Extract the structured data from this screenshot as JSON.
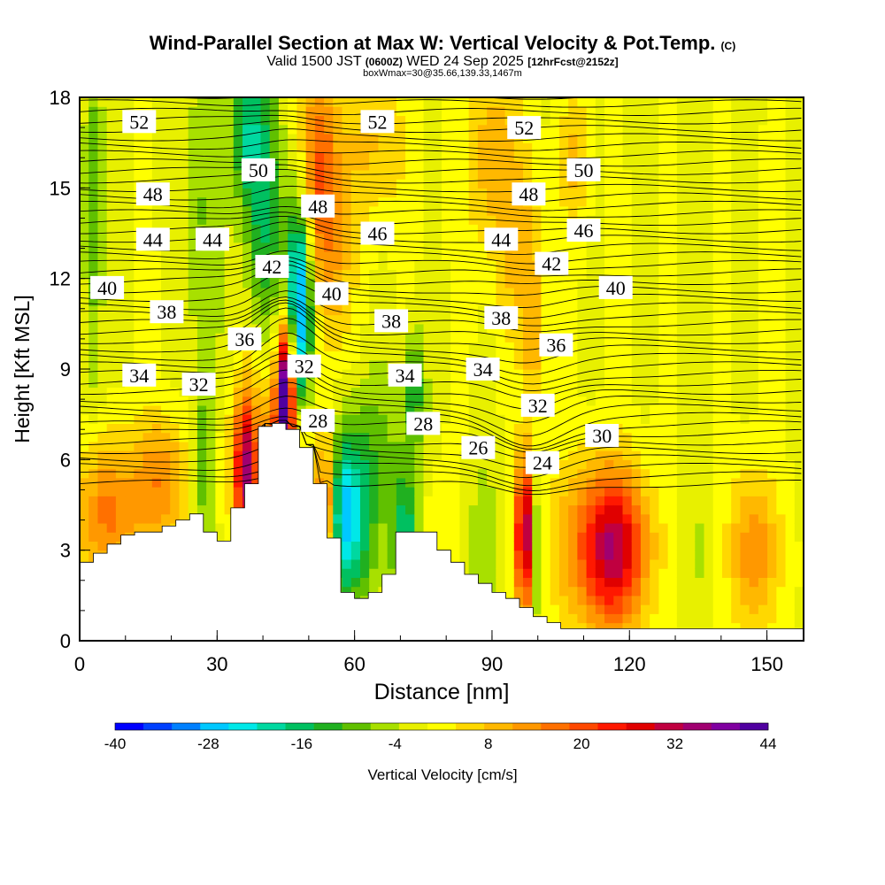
{
  "title": {
    "main": "Wind-Parallel Section at Max W: Vertical Velocity & Pot.Temp.",
    "main_tag": "(C)",
    "valid_prefix": "Valid 1500 JST",
    "valid_z": "(0600Z)",
    "valid_date": "WED 24 Sep 2025",
    "valid_fcst": "[12hrFcst@2152z]",
    "box_line": "boxWmax=30@35.66,139.33,1467m"
  },
  "chart_data": {
    "type": "heatmap",
    "xlabel": "Distance [nm]",
    "ylabel": "Height [Kft MSL]",
    "xlim": [
      0,
      158
    ],
    "ylim": [
      0,
      18
    ],
    "x_ticks": [
      0,
      30,
      60,
      90,
      120,
      150
    ],
    "y_ticks": [
      0,
      3,
      6,
      9,
      12,
      15,
      18
    ],
    "colorbar": {
      "label": "Vertical Velocity [cm/s]",
      "tick_labels": [
        "-40",
        "-28",
        "-16",
        "-4",
        "8",
        "20",
        "32",
        "44"
      ],
      "tick_values": [
        -40,
        -28,
        -16,
        -4,
        8,
        20,
        32,
        44
      ],
      "colors": [
        "#0000ff",
        "#0040ff",
        "#0080ff",
        "#00c8ff",
        "#00e8e8",
        "#00d8a0",
        "#00c060",
        "#20b020",
        "#60c000",
        "#a8e000",
        "#e8f000",
        "#ffff00",
        "#ffd800",
        "#ffb800",
        "#ff9800",
        "#ff7000",
        "#ff4800",
        "#ff1800",
        "#e00000",
        "#c00040",
        "#a00070",
        "#8000a0",
        "#5000a0"
      ]
    },
    "theta_labels": [
      {
        "v": "52",
        "x": 13,
        "y": 17.2
      },
      {
        "v": "52",
        "x": 65,
        "y": 17.2
      },
      {
        "v": "52",
        "x": 97,
        "y": 17.0
      },
      {
        "v": "50",
        "x": 39,
        "y": 15.6
      },
      {
        "v": "50",
        "x": 110,
        "y": 15.6
      },
      {
        "v": "48",
        "x": 16,
        "y": 14.8
      },
      {
        "v": "48",
        "x": 52,
        "y": 14.4
      },
      {
        "v": "48",
        "x": 98,
        "y": 14.8
      },
      {
        "v": "46",
        "x": 65,
        "y": 13.5
      },
      {
        "v": "46",
        "x": 110,
        "y": 13.6
      },
      {
        "v": "44",
        "x": 16,
        "y": 13.3
      },
      {
        "v": "44",
        "x": 29,
        "y": 13.3
      },
      {
        "v": "44",
        "x": 92,
        "y": 13.3
      },
      {
        "v": "42",
        "x": 42,
        "y": 12.4
      },
      {
        "v": "42",
        "x": 103,
        "y": 12.5
      },
      {
        "v": "40",
        "x": 6,
        "y": 11.7
      },
      {
        "v": "40",
        "x": 55,
        "y": 11.5
      },
      {
        "v": "40",
        "x": 117,
        "y": 11.7
      },
      {
        "v": "38",
        "x": 19,
        "y": 10.9
      },
      {
        "v": "38",
        "x": 68,
        "y": 10.6
      },
      {
        "v": "38",
        "x": 92,
        "y": 10.7
      },
      {
        "v": "36",
        "x": 36,
        "y": 10.0
      },
      {
        "v": "36",
        "x": 104,
        "y": 9.8
      },
      {
        "v": "34",
        "x": 13,
        "y": 8.8
      },
      {
        "v": "34",
        "x": 71,
        "y": 8.8
      },
      {
        "v": "34",
        "x": 88,
        "y": 9.0
      },
      {
        "v": "32",
        "x": 26,
        "y": 8.5
      },
      {
        "v": "32",
        "x": 49,
        "y": 9.1
      },
      {
        "v": "32",
        "x": 100,
        "y": 7.8
      },
      {
        "v": "30",
        "x": 114,
        "y": 6.8
      },
      {
        "v": "28",
        "x": 52,
        "y": 7.3
      },
      {
        "v": "28",
        "x": 75,
        "y": 7.2
      },
      {
        "v": "26",
        "x": 87,
        "y": 6.4
      },
      {
        "v": "24",
        "x": 101,
        "y": 5.9
      }
    ],
    "terrain_x": [
      0,
      3,
      6,
      9,
      12,
      15,
      18,
      21,
      24,
      27,
      30,
      33,
      36,
      39,
      42,
      45,
      48,
      51,
      54,
      57,
      60,
      63,
      66,
      69,
      72,
      75,
      78,
      81,
      84,
      87,
      90,
      93,
      96,
      99,
      102,
      105,
      108,
      111,
      114,
      117,
      120,
      123,
      126,
      129,
      132,
      135,
      138,
      141,
      144,
      147,
      150,
      153,
      156,
      158
    ],
    "terrain_h": [
      2.6,
      2.9,
      3.2,
      3.5,
      3.6,
      3.6,
      3.8,
      4.0,
      4.2,
      3.6,
      3.3,
      4.4,
      5.2,
      7.1,
      7.2,
      7.0,
      6.4,
      5.2,
      3.4,
      1.6,
      1.4,
      1.6,
      2.2,
      3.6,
      3.6,
      3.6,
      3.0,
      2.6,
      2.2,
      1.9,
      1.6,
      1.4,
      1.1,
      0.8,
      0.6,
      0.4,
      0.4,
      0.4,
      0.4,
      0.4,
      0.4,
      0.4,
      0.4,
      0.4,
      0.4,
      0.4,
      0.4,
      0.4,
      0.4,
      0.4,
      0.4,
      0.4,
      0.4,
      0.4
    ],
    "w_features": [
      {
        "x": 45,
        "y": 8.4,
        "sx": 1.4,
        "sy": 1.6,
        "w": 44
      },
      {
        "x": 48,
        "y": 11.0,
        "sx": 2.0,
        "sy": 2.8,
        "w": -34
      },
      {
        "x": 40,
        "y": 14.6,
        "sx": 2.8,
        "sy": 3.2,
        "w": -16
      },
      {
        "x": 36,
        "y": 16.8,
        "sx": 2.4,
        "sy": 1.6,
        "w": -14
      },
      {
        "x": 52,
        "y": 15.8,
        "sx": 3.2,
        "sy": 2.4,
        "w": 18
      },
      {
        "x": 55,
        "y": 12.2,
        "sx": 3.0,
        "sy": 2.2,
        "w": 10
      },
      {
        "x": 57,
        "y": 4.2,
        "sx": 2.4,
        "sy": 1.8,
        "w": -22
      },
      {
        "x": 61,
        "y": 4.0,
        "sx": 3.0,
        "sy": 2.2,
        "w": -14
      },
      {
        "x": 54,
        "y": 4.5,
        "sx": 1.5,
        "sy": 1.6,
        "w": 24
      },
      {
        "x": 71,
        "y": 3.3,
        "sx": 2.0,
        "sy": 1.6,
        "w": -18
      },
      {
        "x": 66,
        "y": 6.5,
        "sx": 6.0,
        "sy": 2.0,
        "w": -6
      },
      {
        "x": 42,
        "y": 6.0,
        "sx": 6.0,
        "sy": 2.0,
        "w": 18
      },
      {
        "x": 27,
        "y": 5.6,
        "sx": 1.8,
        "sy": 2.4,
        "w": -10
      },
      {
        "x": 36,
        "y": 5.5,
        "sx": 1.4,
        "sy": 1.8,
        "w": 26
      },
      {
        "x": 6,
        "y": 4.3,
        "sx": 5.0,
        "sy": 1.8,
        "w": 16
      },
      {
        "x": 18,
        "y": 5.2,
        "sx": 4.0,
        "sy": 1.6,
        "w": 14
      },
      {
        "x": 3,
        "y": 14,
        "sx": 1.6,
        "sy": 5.0,
        "w": -10
      },
      {
        "x": 27,
        "y": 14,
        "sx": 3.0,
        "sy": 4.0,
        "w": -8
      },
      {
        "x": 97,
        "y": 3.5,
        "sx": 1.1,
        "sy": 1.8,
        "w": 40
      },
      {
        "x": 100,
        "y": 3.0,
        "sx": 1.2,
        "sy": 1.8,
        "w": -10
      },
      {
        "x": 117,
        "y": 3.0,
        "sx": 5.0,
        "sy": 1.8,
        "w": 24
      },
      {
        "x": 112,
        "y": 3.2,
        "sx": 7.0,
        "sy": 2.0,
        "w": 12
      },
      {
        "x": 147,
        "y": 3.0,
        "sx": 4.0,
        "sy": 1.8,
        "w": 14
      },
      {
        "x": 136,
        "y": 3.0,
        "sx": 3.0,
        "sy": 1.6,
        "w": -4
      },
      {
        "x": 88,
        "y": 3.2,
        "sx": 3.0,
        "sy": 2.0,
        "w": -6
      },
      {
        "x": 79,
        "y": 4.0,
        "sx": 3.0,
        "sy": 1.6,
        "w": 4
      },
      {
        "x": 90,
        "y": 16,
        "sx": 4.0,
        "sy": 2.5,
        "w": 10
      },
      {
        "x": 99,
        "y": 10.3,
        "sx": 1.5,
        "sy": 2.2,
        "w": 10
      },
      {
        "x": 96,
        "y": 13.0,
        "sx": 3.0,
        "sy": 2.5,
        "w": 7
      },
      {
        "x": 64,
        "y": 16.5,
        "sx": 5.0,
        "sy": 2.0,
        "w": 8
      },
      {
        "x": 73,
        "y": 8.3,
        "sx": 1.6,
        "sy": 1.4,
        "w": -12
      },
      {
        "x": 108,
        "y": 16,
        "sx": 2.0,
        "sy": 2.0,
        "w": 8
      }
    ]
  }
}
